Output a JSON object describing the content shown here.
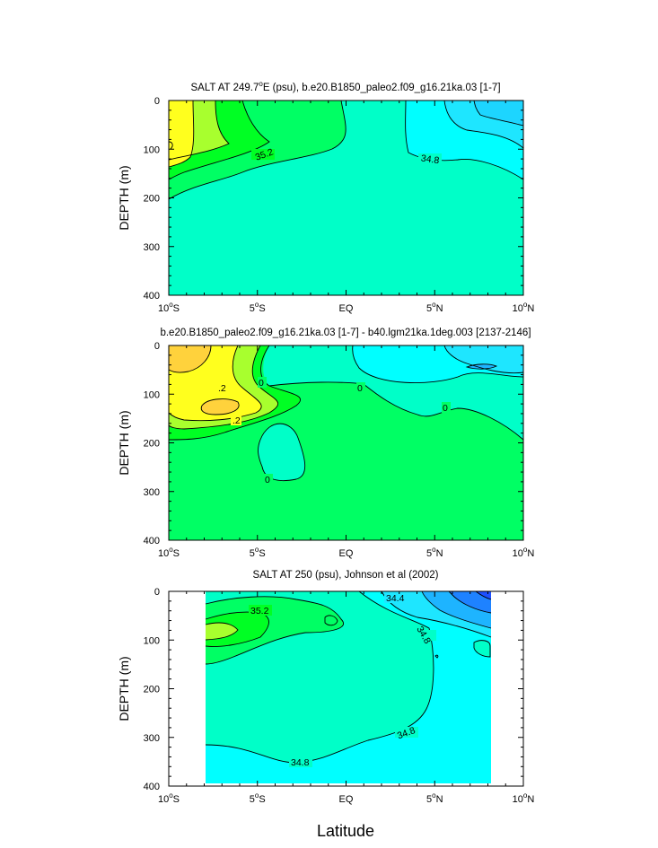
{
  "xlabel": "Latitude",
  "colors": {
    "yellow": "#ffff1e",
    "gold": "#ffd23c",
    "lime": "#a8ff2e",
    "green": "#00ff24",
    "green_light": "#00ff64",
    "aqua": "#00ffc8",
    "cyan": "#00ffff",
    "sky": "#1ee6ff",
    "blue1": "#1eb4ff",
    "blue2": "#1e82ff",
    "blue3": "#1e50ff"
  },
  "chart_data": [
    {
      "type": "contour",
      "title": "SALT AT 249.7°E (psu), b.e20.B1850_paleo2.f09_g16.21ka.03 [1-7]",
      "title_parts": [
        "SALT AT 249.7",
        "o",
        "E (psu), b.e20.B1850_paleo2.f09_g16.21ka.03 [1-7]"
      ],
      "ylabel": "DEPTH (m)",
      "xlim": [
        -10,
        10
      ],
      "ylim": [
        400,
        0
      ],
      "yticks": [
        "0",
        "100",
        "200",
        "300",
        "400"
      ],
      "xticks": [
        {
          "num": "10",
          "deg": "o",
          "hem": "S"
        },
        {
          "num": "5",
          "deg": "o",
          "hem": "S"
        },
        {
          "num": "EQ",
          "deg": "",
          "hem": ""
        },
        {
          "num": "5",
          "deg": "o",
          "hem": "N"
        },
        {
          "num": "10",
          "deg": "o",
          "hem": "N"
        }
      ],
      "contour_labels": [
        "35.2",
        "34.8"
      ]
    },
    {
      "type": "contour",
      "title": "b.e20.B1850_paleo2.f09_g16.21ka.03 [1-7] - b40.lgm21ka.1deg.003 [2137-2146]",
      "ylabel": "DEPTH (m)",
      "xlim": [
        -10,
        10
      ],
      "ylim": [
        400,
        0
      ],
      "yticks": [
        "0",
        "100",
        "200",
        "300",
        "400"
      ],
      "xticks": [
        {
          "num": "10",
          "deg": "o",
          "hem": "S"
        },
        {
          "num": "5",
          "deg": "o",
          "hem": "S"
        },
        {
          "num": "EQ",
          "deg": "",
          "hem": ""
        },
        {
          "num": "5",
          "deg": "o",
          "hem": "N"
        },
        {
          "num": "10",
          "deg": "o",
          "hem": "N"
        }
      ],
      "contour_labels": [
        ".2",
        ".2",
        "0",
        "0",
        "0",
        "0"
      ]
    },
    {
      "type": "contour",
      "title": "SALT AT 250 (psu), Johnson et al (2002)",
      "ylabel": "DEPTH (m)",
      "xlim": [
        -10,
        10
      ],
      "ylim": [
        400,
        0
      ],
      "data_xlim": [
        -8,
        8.2
      ],
      "yticks": [
        "0",
        "100",
        "200",
        "300",
        "400"
      ],
      "xticks": [
        {
          "num": "10",
          "deg": "o",
          "hem": "S"
        },
        {
          "num": "5",
          "deg": "o",
          "hem": "S"
        },
        {
          "num": "EQ",
          "deg": "",
          "hem": ""
        },
        {
          "num": "5",
          "deg": "o",
          "hem": "N"
        },
        {
          "num": "10",
          "deg": "o",
          "hem": "N"
        }
      ],
      "contour_labels": [
        "34.4",
        "35.2",
        "34.8",
        "34.8",
        "34.8"
      ]
    }
  ]
}
